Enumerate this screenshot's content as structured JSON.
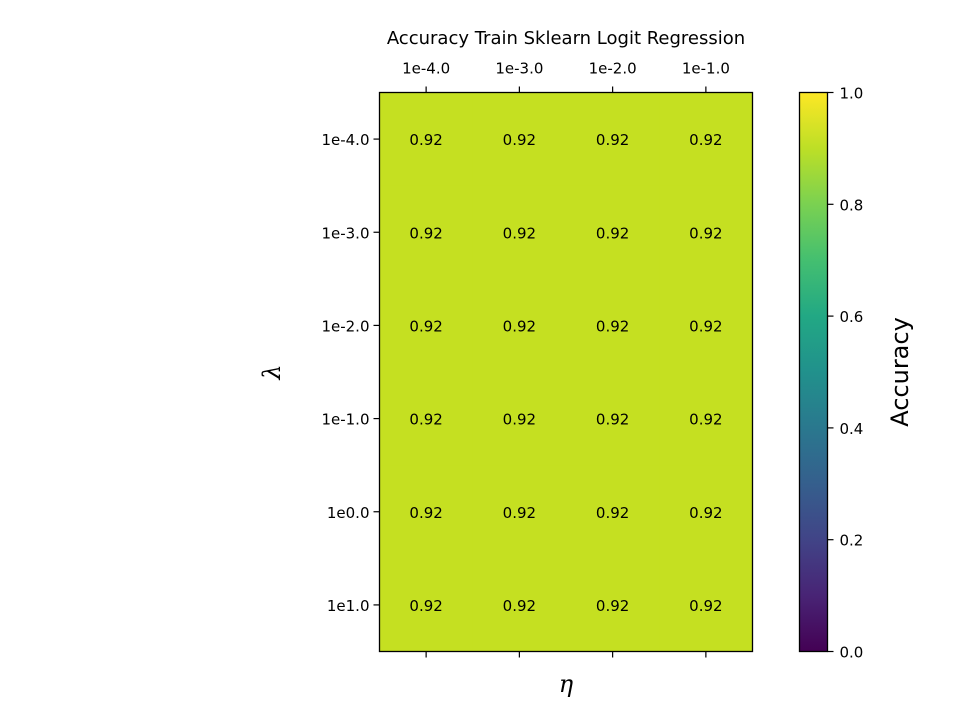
{
  "chart_data": {
    "type": "heatmap",
    "title": "Accuracy Train Sklearn Logit Regression",
    "xlabel": "η",
    "ylabel": "λ",
    "x_categories": [
      "1e-4.0",
      "1e-3.0",
      "1e-2.0",
      "1e-1.0"
    ],
    "y_categories": [
      "1e-4.0",
      "1e-3.0",
      "1e-2.0",
      "1e-1.0",
      "1e0.0",
      "1e1.0"
    ],
    "values": [
      [
        0.92,
        0.92,
        0.92,
        0.92
      ],
      [
        0.92,
        0.92,
        0.92,
        0.92
      ],
      [
        0.92,
        0.92,
        0.92,
        0.92
      ],
      [
        0.92,
        0.92,
        0.92,
        0.92
      ],
      [
        0.92,
        0.92,
        0.92,
        0.92
      ],
      [
        0.92,
        0.92,
        0.92,
        0.92
      ]
    ],
    "colormap": "viridis",
    "cell_color": "#c5e021",
    "colorbar": {
      "label": "Accuracy",
      "range": [
        0.0,
        1.0
      ],
      "ticks": [
        "0.0",
        "0.2",
        "0.4",
        "0.6",
        "0.8",
        "1.0"
      ]
    },
    "x_tick_position": "top",
    "grid": false
  }
}
